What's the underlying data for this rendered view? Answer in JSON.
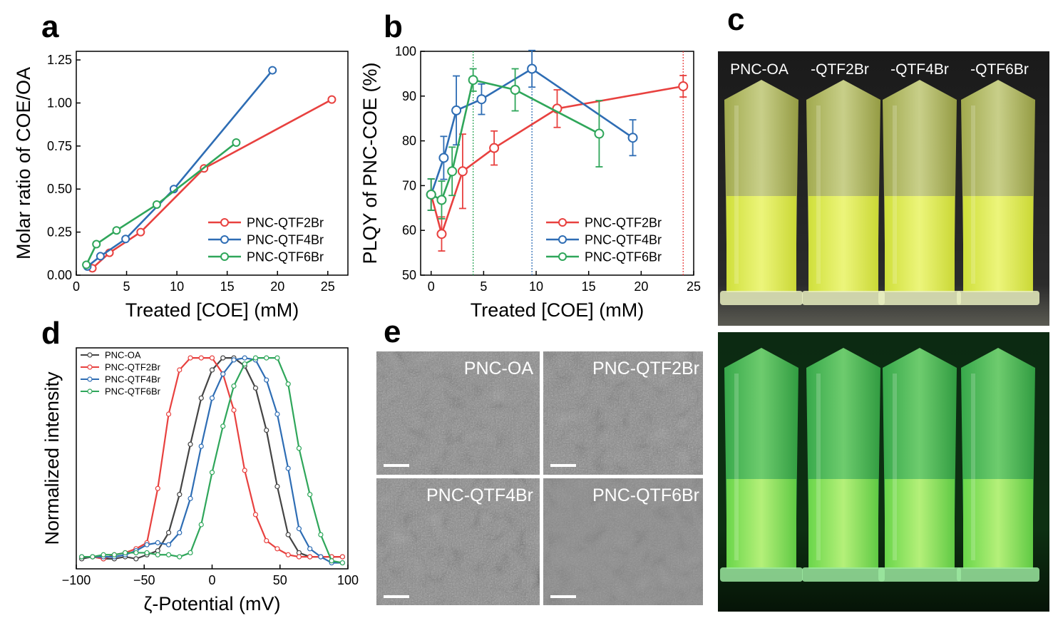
{
  "panel_labels": {
    "a": "a",
    "b": "b",
    "c": "c",
    "d": "d",
    "e": "e"
  },
  "colors": {
    "red": "#e8413f",
    "blue": "#2e6db4",
    "green": "#2fa65a",
    "gray": "#444444",
    "vial_day": "#e6f06a",
    "vial_uv": "#7ee85a"
  },
  "chart_data": [
    {
      "id": "a",
      "type": "line",
      "xlabel": "Treated [COE] (mM)",
      "ylabel": "Molar ratio of COE/OA",
      "xlim": [
        0,
        27
      ],
      "ylim": [
        0,
        1.3
      ],
      "xticks": [
        0,
        5,
        10,
        15,
        20,
        25
      ],
      "yticks": [
        0.0,
        0.25,
        0.5,
        0.75,
        1.0,
        1.25
      ],
      "ytick_labels": [
        "0.00",
        "0.25",
        "0.50",
        "0.75",
        "1.00",
        "1.25"
      ],
      "legend_position": "bottom-right",
      "series": [
        {
          "name": "PNC-QTF2Br",
          "color": "#e8413f",
          "x": [
            1.6,
            3.3,
            6.4,
            12.7,
            25.4
          ],
          "y": [
            0.04,
            0.13,
            0.25,
            0.62,
            1.02
          ]
        },
        {
          "name": "PNC-QTF4Br",
          "color": "#2e6db4",
          "x": [
            1.1,
            2.4,
            4.9,
            9.7,
            19.5
          ],
          "y": [
            0.05,
            0.11,
            0.21,
            0.5,
            1.19
          ]
        },
        {
          "name": "PNC-QTF6Br",
          "color": "#2fa65a",
          "x": [
            1.0,
            2.0,
            4.0,
            8.0,
            15.9
          ],
          "y": [
            0.06,
            0.18,
            0.26,
            0.41,
            0.77
          ]
        }
      ]
    },
    {
      "id": "b",
      "type": "line",
      "xlabel": "Treated [COE] (mM)",
      "ylabel": "PLQY of PNC-COE (%)",
      "xlim": [
        -1,
        25
      ],
      "ylim": [
        50,
        100
      ],
      "xticks": [
        0,
        5,
        10,
        15,
        20,
        25
      ],
      "yticks": [
        50,
        60,
        70,
        80,
        90,
        100
      ],
      "legend_position": "bottom-right",
      "series": [
        {
          "name": "PNC-QTF2Br",
          "color": "#e8413f",
          "x": [
            0,
            1.0,
            3.0,
            6.0,
            12.0,
            24.0
          ],
          "y": [
            68,
            59.2,
            73.2,
            78.4,
            87.2,
            92.2
          ],
          "err": [
            3.5,
            3.8,
            8.3,
            3.8,
            4.2,
            2.4
          ]
        },
        {
          "name": "PNC-QTF4Br",
          "color": "#2e6db4",
          "x": [
            0,
            1.2,
            2.4,
            4.8,
            9.6,
            19.2
          ],
          "y": [
            68,
            76.2,
            86.8,
            89.3,
            96.1,
            80.7
          ],
          "err": [
            3.5,
            4.8,
            7.7,
            3.4,
            4.1,
            4.0
          ]
        },
        {
          "name": "PNC-QTF6Br",
          "color": "#2fa65a",
          "x": [
            0,
            1.0,
            2.0,
            4.0,
            8.0,
            16.0
          ],
          "y": [
            68,
            66.8,
            73.2,
            93.6,
            91.4,
            81.6
          ],
          "err": [
            3.5,
            4.2,
            5.4,
            2.5,
            4.7,
            7.4
          ]
        }
      ],
      "vlines": [
        {
          "x": 4.0,
          "color": "#2fa65a"
        },
        {
          "x": 9.6,
          "color": "#2e6db4"
        },
        {
          "x": 24.0,
          "color": "#e8413f"
        }
      ]
    },
    {
      "id": "d",
      "type": "line",
      "xlabel": "ζ-Potential (mV)",
      "ylabel": "Normalized intensity",
      "xlim": [
        -100,
        100
      ],
      "ylim": [
        -0.05,
        1.05
      ],
      "xticks": [
        -100,
        -50,
        0,
        50,
        100
      ],
      "xtick_labels": [
        "−100",
        "−50",
        "0",
        "50",
        "100"
      ],
      "legend_position": "top-left",
      "series": [
        {
          "name": "PNC-OA",
          "color": "#444444",
          "x": [
            -96,
            -88,
            -80,
            -72,
            -64,
            -56,
            -48,
            -40,
            -32,
            -24,
            -16,
            -8,
            0,
            8,
            16,
            24,
            32,
            40,
            48,
            56,
            64,
            72,
            80,
            88,
            96
          ],
          "y": [
            0.0,
            0.01,
            0.0,
            0.0,
            0.01,
            0.0,
            0.02,
            0.04,
            0.13,
            0.32,
            0.57,
            0.8,
            0.94,
            1.0,
            1.0,
            0.96,
            0.85,
            0.64,
            0.36,
            0.12,
            0.03,
            0.01,
            0.01,
            0.01,
            0.01
          ]
        },
        {
          "name": "PNC-QTF2Br",
          "color": "#e8413f",
          "x": [
            -96,
            -88,
            -80,
            -72,
            -64,
            -56,
            -48,
            -40,
            -32,
            -24,
            -16,
            -8,
            0,
            8,
            16,
            24,
            32,
            40,
            48,
            56,
            64,
            72,
            80,
            88,
            96
          ],
          "y": [
            0.01,
            0.01,
            0.0,
            0.02,
            0.03,
            0.05,
            0.08,
            0.35,
            0.72,
            0.94,
            1.0,
            1.0,
            1.0,
            0.92,
            0.74,
            0.44,
            0.22,
            0.09,
            0.05,
            0.02,
            0.01,
            0.01,
            0.01,
            0.01,
            0.01
          ]
        },
        {
          "name": "PNC-QTF4Br",
          "color": "#2e6db4",
          "x": [
            -96,
            -88,
            -80,
            -72,
            -64,
            -56,
            -48,
            -40,
            -32,
            -24,
            -16,
            -8,
            0,
            8,
            16,
            24,
            32,
            40,
            48,
            56,
            64,
            72,
            80,
            88,
            96
          ],
          "y": [
            0.01,
            0.01,
            0.01,
            0.01,
            0.02,
            0.04,
            0.07,
            0.08,
            0.07,
            0.13,
            0.3,
            0.56,
            0.8,
            0.92,
            0.99,
            1.0,
            0.99,
            0.89,
            0.72,
            0.45,
            0.15,
            0.05,
            0.01,
            -0.02,
            -0.02
          ]
        },
        {
          "name": "PNC-QTF6Br",
          "color": "#2fa65a",
          "x": [
            -96,
            -88,
            -80,
            -72,
            -64,
            -56,
            -48,
            -40,
            -32,
            -24,
            -16,
            -8,
            0,
            8,
            16,
            24,
            32,
            40,
            48,
            56,
            64,
            72,
            80,
            88,
            96
          ],
          "y": [
            0.01,
            0.01,
            0.02,
            0.02,
            0.03,
            0.03,
            0.03,
            0.02,
            0.02,
            0.01,
            0.03,
            0.17,
            0.43,
            0.66,
            0.86,
            0.97,
            1.0,
            1.0,
            1.0,
            0.87,
            0.55,
            0.32,
            0.12,
            -0.01,
            -0.02
          ]
        }
      ]
    }
  ],
  "vials": {
    "labels": [
      "PNC-OA",
      "-QTF2Br",
      "-QTF4Br",
      "-QTF6Br"
    ]
  },
  "tem": {
    "labels": [
      "PNC-OA",
      "PNC-QTF2Br",
      "PNC-QTF4Br",
      "PNC-QTF6Br"
    ]
  }
}
